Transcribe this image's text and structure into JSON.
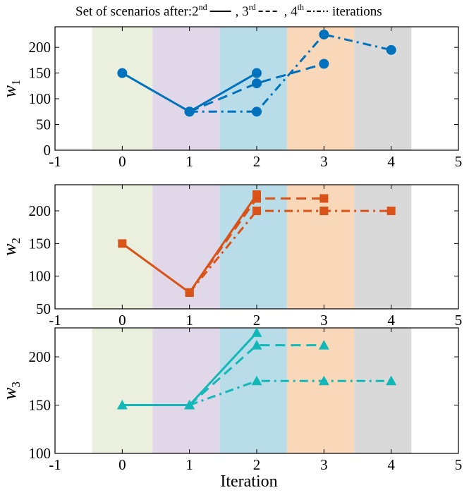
{
  "chart_data": {
    "type": "line",
    "legend": {
      "prefix": "Set of scenarios after:",
      "entries": [
        {
          "base": "2",
          "sup": "nd",
          "dash": "solid"
        },
        {
          "base": ", 3",
          "sup": "rd",
          "dash": "dashed"
        },
        {
          "base": ", 4",
          "sup": "th",
          "dash": "dashdot"
        }
      ],
      "suffix": "iterations",
      "placement": "top-center"
    },
    "xlabel": "Iteration",
    "xlim": [
      -1,
      5
    ],
    "xticks": [
      -1,
      0,
      1,
      2,
      3,
      4,
      5
    ],
    "shaded_bands": [
      {
        "iteration": 0,
        "from": -0.45,
        "to": 0.45,
        "color": "#ebf0de"
      },
      {
        "iteration": 1,
        "from": 0.45,
        "to": 1.45,
        "color": "#e0d8e8"
      },
      {
        "iteration": 2,
        "from": 1.45,
        "to": 2.45,
        "color": "#b8dde8"
      },
      {
        "iteration": 3,
        "from": 2.45,
        "to": 3.45,
        "color": "#f9d7b9"
      },
      {
        "iteration": 4,
        "from": 3.45,
        "to": 4.3,
        "color": "#d9d9d9"
      }
    ],
    "panels": [
      {
        "ylabel": "w",
        "ylabel_sub": "1",
        "ylim": [
          0,
          240
        ],
        "yticks": [
          0,
          50,
          100,
          150,
          200
        ],
        "color": "#0072bd",
        "marker": "circle",
        "series": [
          {
            "dash": "solid",
            "x": [
              0,
              1,
              2
            ],
            "y": [
              150,
              75,
              150
            ]
          },
          {
            "dash": "dashed",
            "x": [
              1,
              2,
              3
            ],
            "y": [
              75,
              130,
              168
            ]
          },
          {
            "dash": "dashdot",
            "x": [
              1,
              2,
              3,
              4
            ],
            "y": [
              75,
              75,
              225,
              195
            ]
          }
        ]
      },
      {
        "ylabel": "w",
        "ylabel_sub": "2",
        "ylim": [
          50,
          240
        ],
        "yticks": [
          50,
          100,
          150,
          200
        ],
        "color": "#d95319",
        "marker": "square",
        "series": [
          {
            "dash": "solid",
            "x": [
              0,
              1,
              2
            ],
            "y": [
              150,
              75,
              225
            ]
          },
          {
            "dash": "dashed",
            "x": [
              1,
              2,
              3
            ],
            "y": [
              75,
              219,
              219
            ]
          },
          {
            "dash": "dashdot",
            "x": [
              1,
              2,
              3,
              4
            ],
            "y": [
              75,
              200,
              200,
              200
            ]
          }
        ]
      },
      {
        "ylabel": "w",
        "ylabel_sub": "3",
        "ylim": [
          100,
          230
        ],
        "yticks": [
          100,
          150,
          200
        ],
        "color": "#12b8b8",
        "marker": "triangle",
        "series": [
          {
            "dash": "solid",
            "x": [
              0,
              1,
              2
            ],
            "y": [
              150,
              150,
              225
            ]
          },
          {
            "dash": "dashed",
            "x": [
              1,
              2,
              3
            ],
            "y": [
              150,
              212,
              212
            ]
          },
          {
            "dash": "dashdot",
            "x": [
              1,
              2,
              3,
              4
            ],
            "y": [
              150,
              175,
              175,
              175
            ]
          }
        ]
      }
    ]
  }
}
